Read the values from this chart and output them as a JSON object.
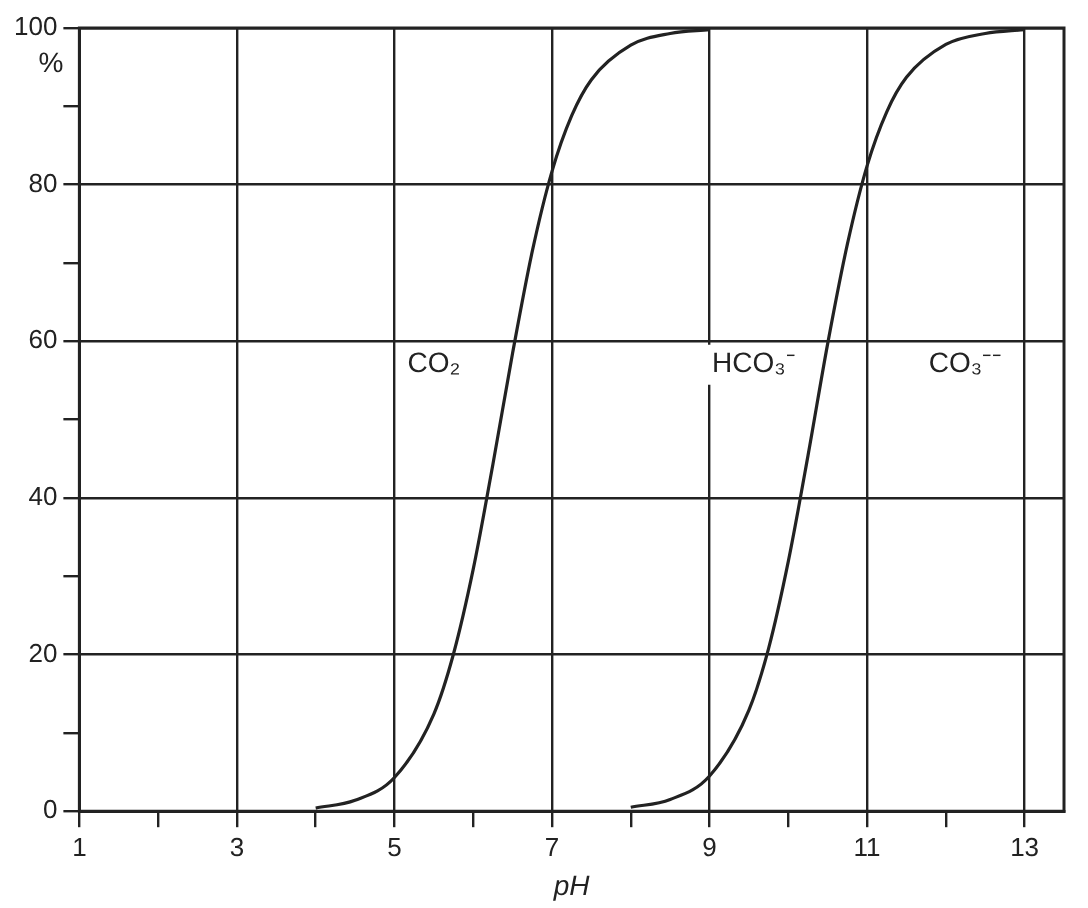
{
  "chart_data": {
    "type": "line",
    "xlabel": "pH",
    "ylabel": "%",
    "xlim": [
      1,
      13.5
    ],
    "ylim": [
      0,
      100
    ],
    "xticks": [
      1,
      {
        "value": 2,
        "label": null
      },
      3,
      {
        "value": 4,
        "label": null
      },
      5,
      {
        "value": 6,
        "label": null
      },
      7,
      {
        "value": 8,
        "label": null
      },
      9,
      {
        "value": 10,
        "label": null
      },
      11,
      {
        "value": 12,
        "label": null
      },
      13
    ],
    "yticks": [
      0,
      {
        "value": 10,
        "label": null
      },
      20,
      {
        "value": 30,
        "label": null
      },
      40,
      {
        "value": 50,
        "label": null
      },
      60,
      {
        "value": 70,
        "label": null
      },
      80,
      {
        "value": 90,
        "label": null
      },
      100
    ],
    "grid": true,
    "legend": false,
    "marker": "none",
    "line_style": "solid",
    "series": [
      {
        "color": "#222222",
        "x": [
          4,
          4.5,
          5,
          5.5,
          5.75,
          6,
          6.25,
          6.5,
          6.75,
          7,
          7.25,
          7.5,
          8,
          8.5,
          9
        ],
        "values": [
          0.4,
          1.4,
          4.3,
          12.4,
          20.1,
          30.9,
          44.3,
          58.5,
          71.5,
          81.7,
          88.8,
          93.4,
          97.8,
          99.3,
          99.8
        ]
      },
      {
        "color": "#222222",
        "x": [
          8,
          8.5,
          9,
          9.5,
          9.75,
          10,
          10.25,
          10.5,
          10.75,
          11,
          11.25,
          11.5,
          12,
          12.5,
          13
        ],
        "values": [
          0.5,
          1.5,
          4.5,
          12.9,
          20.8,
          31.9,
          45.4,
          59.7,
          72.4,
          82.4,
          89.3,
          93.7,
          97.9,
          99.3,
          99.8
        ]
      }
    ],
    "annotations": [
      "CO₂",
      "HCO₃⁻",
      "CO₃⁻⁻"
    ]
  }
}
